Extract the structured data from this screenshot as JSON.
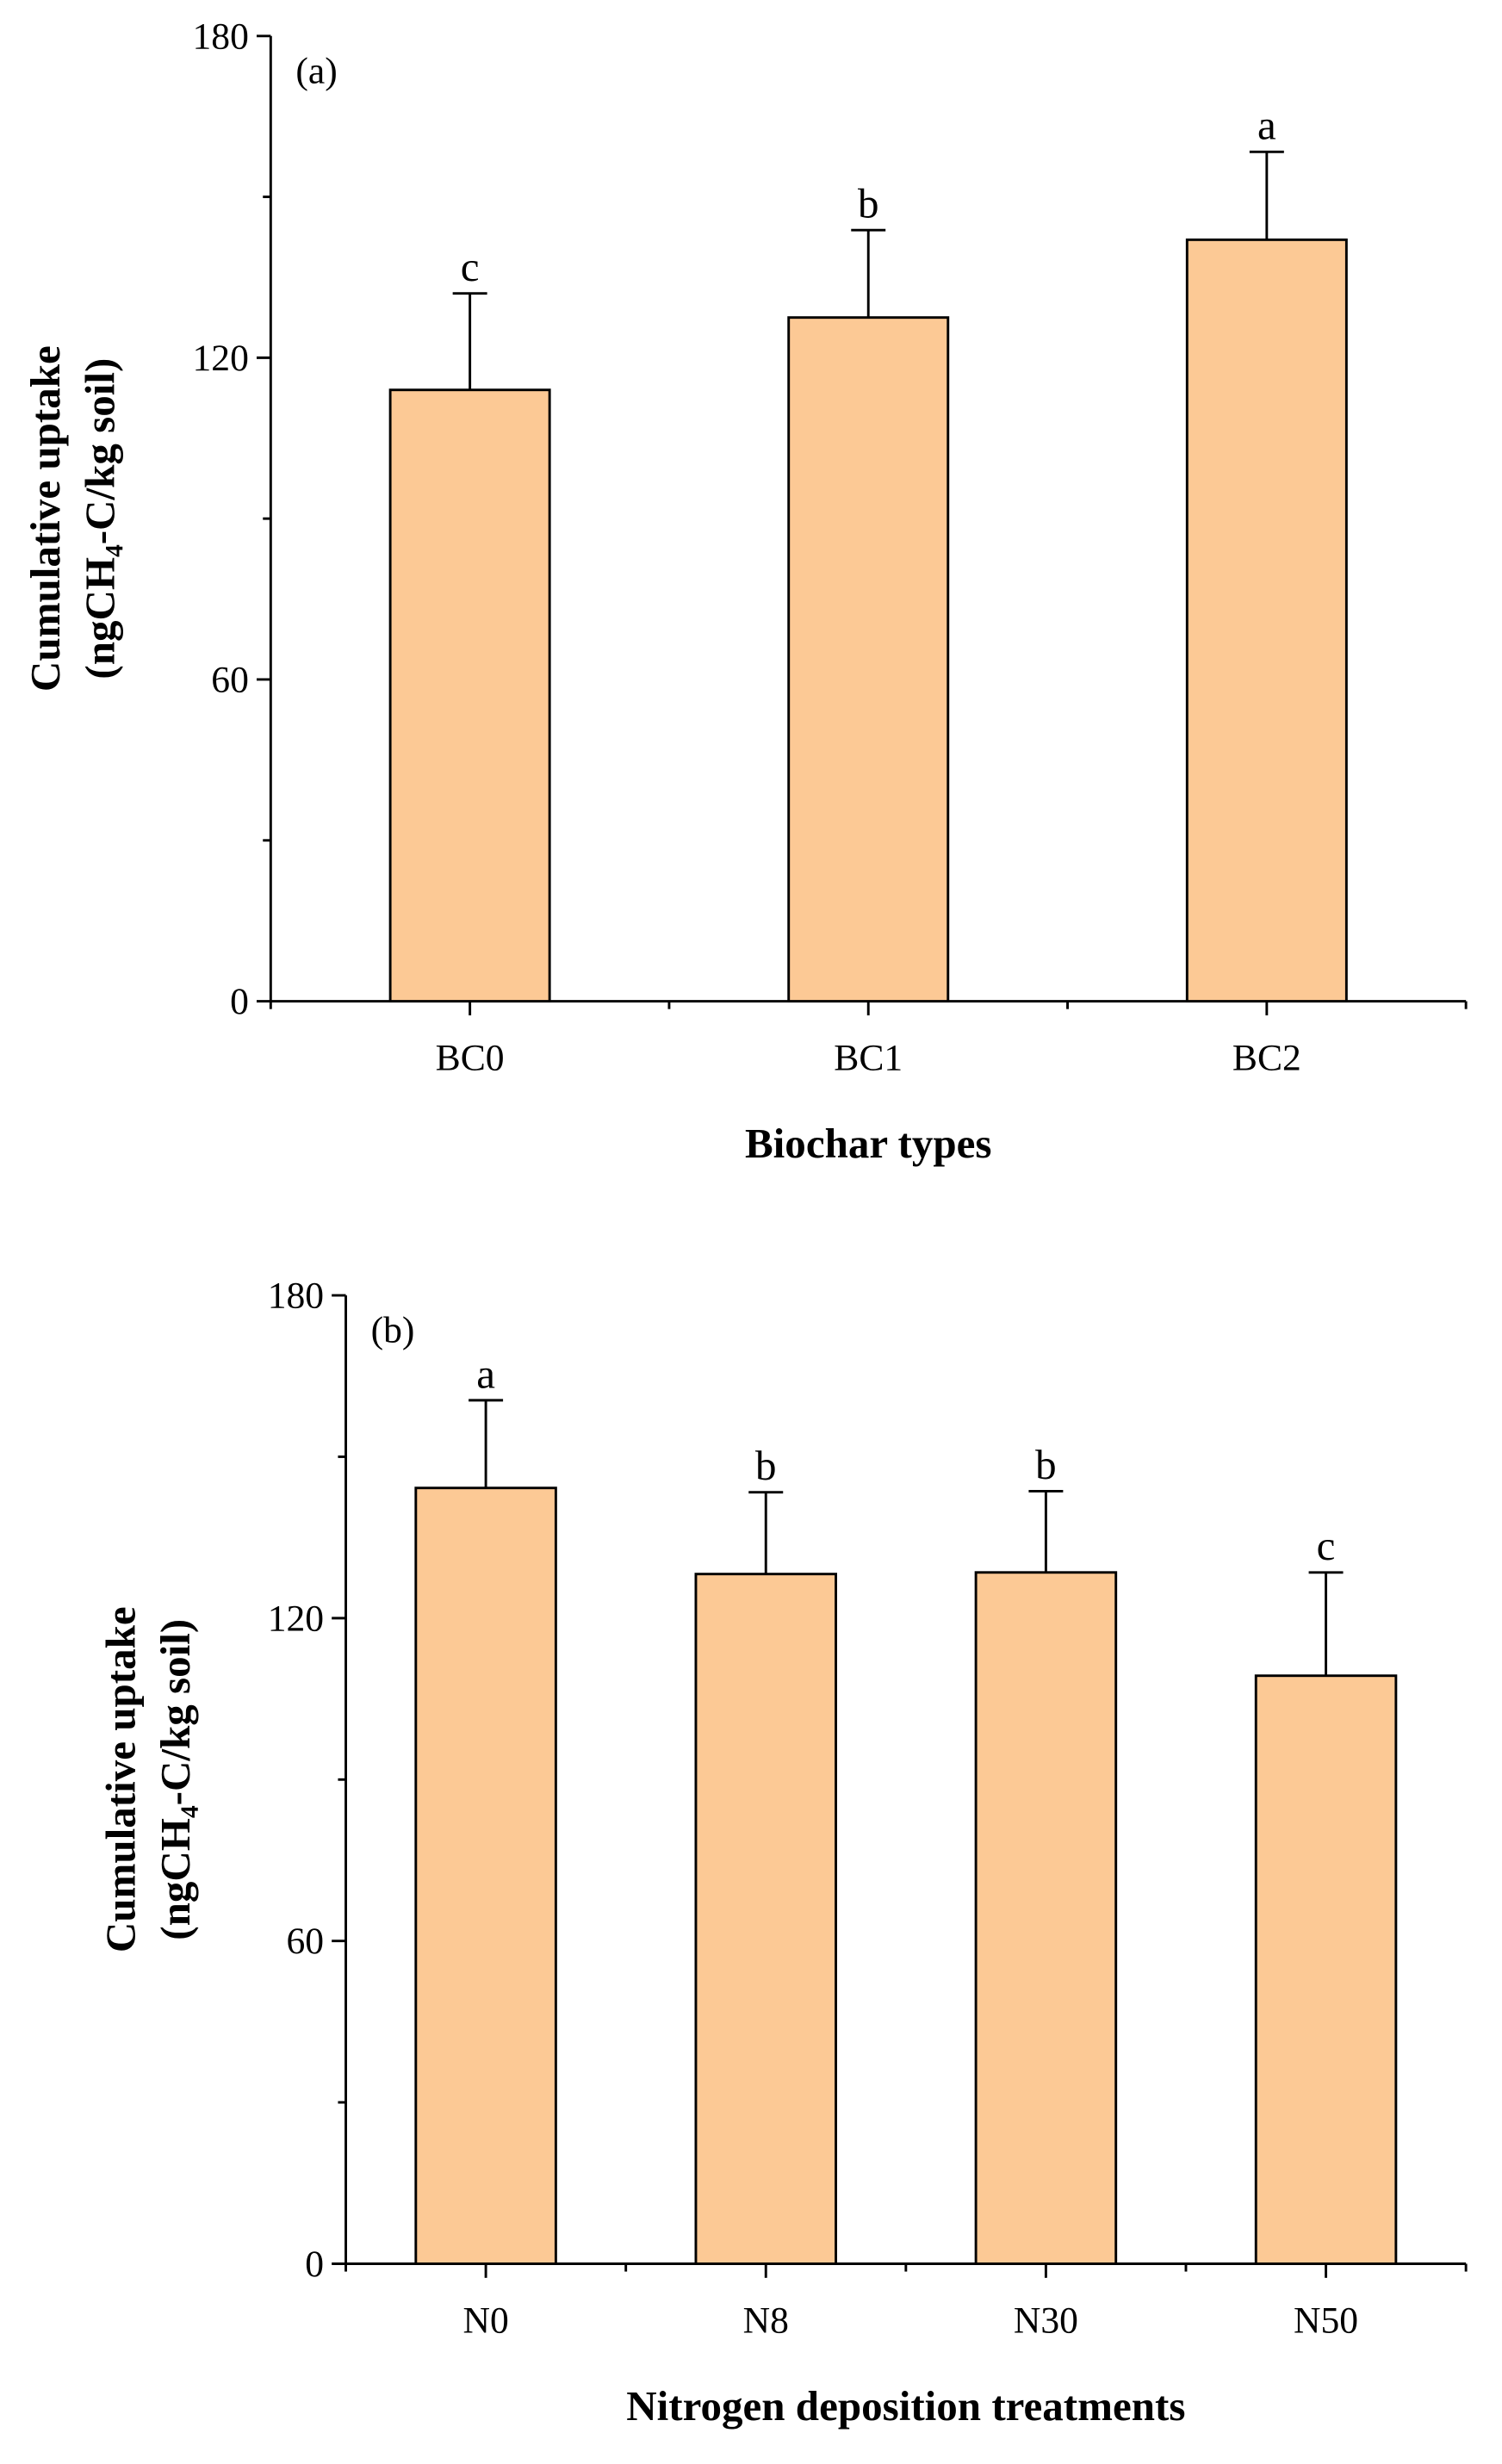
{
  "chart_data": [
    {
      "type": "bar",
      "panel_label": "(a)",
      "categories": [
        "BC0",
        "BC1",
        "BC2"
      ],
      "values": [
        114,
        127.5,
        142
      ],
      "errors": [
        18,
        16.3,
        16.4
      ],
      "annotations": [
        "c",
        "b",
        "a"
      ],
      "color": "#fcc995",
      "x_label": "Biochar types",
      "y_label": [
        "Cumulative uptake",
        "(ngCH₄-C/kg soil)"
      ],
      "ylim": [
        0,
        180
      ],
      "yticks": [
        0,
        60,
        120,
        180
      ]
    },
    {
      "type": "bar",
      "panel_label": "(b)",
      "categories": [
        "N0",
        "N8",
        "N30",
        "N50"
      ],
      "values": [
        144.2,
        128.2,
        128.5,
        109.3
      ],
      "errors": [
        16.3,
        15.2,
        15.1,
        19.2
      ],
      "annotations": [
        "a",
        "b",
        "b",
        "c"
      ],
      "color": "#fcc995",
      "x_label": "Nitrogen deposition treatments",
      "y_label": [
        "Cumulative uptake",
        "(ngCH₄-C/kg soil)"
      ],
      "ylim": [
        0,
        180
      ],
      "yticks": [
        0,
        60,
        120,
        180
      ]
    }
  ]
}
